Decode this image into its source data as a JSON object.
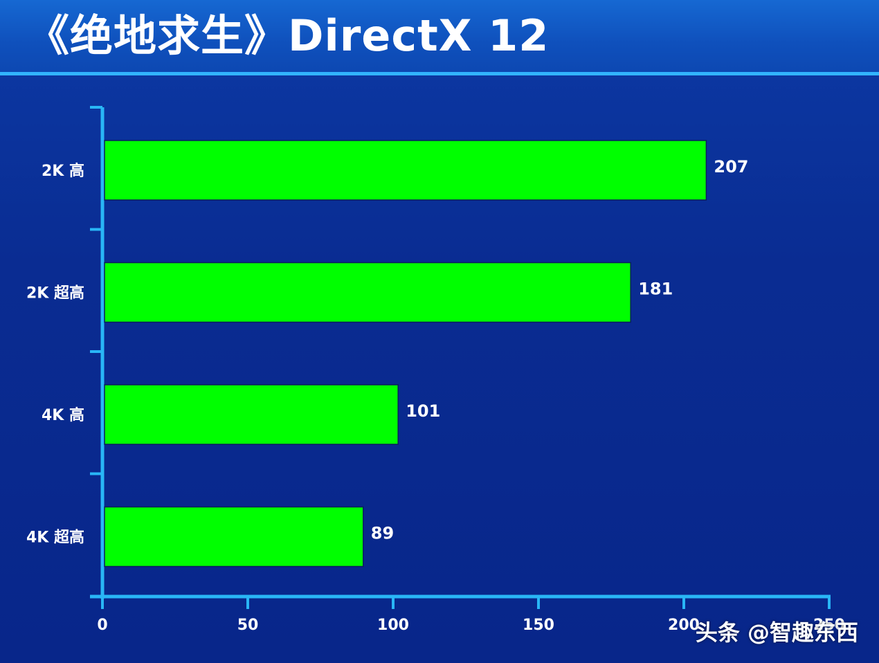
{
  "slide": {
    "title": "《绝地求生》DirectX 12",
    "watermark": "头条 @智趣东西"
  },
  "chart_data": {
    "type": "bar",
    "orientation": "horizontal",
    "title": "《绝地求生》DirectX 12",
    "categories": [
      "2K 高",
      "2K 超高",
      "4K 高",
      "4K 超高"
    ],
    "values": [
      207,
      181,
      101,
      89
    ],
    "xlim": [
      0,
      250
    ],
    "xticks": [
      0,
      50,
      100,
      150,
      200,
      250
    ],
    "xlabel": "",
    "ylabel": "",
    "grid": false,
    "legend": "none",
    "colors": {
      "bar": "#00ff00",
      "axis": "#29b6f6",
      "text": "#ffffff",
      "background": "#0a2c92"
    }
  }
}
